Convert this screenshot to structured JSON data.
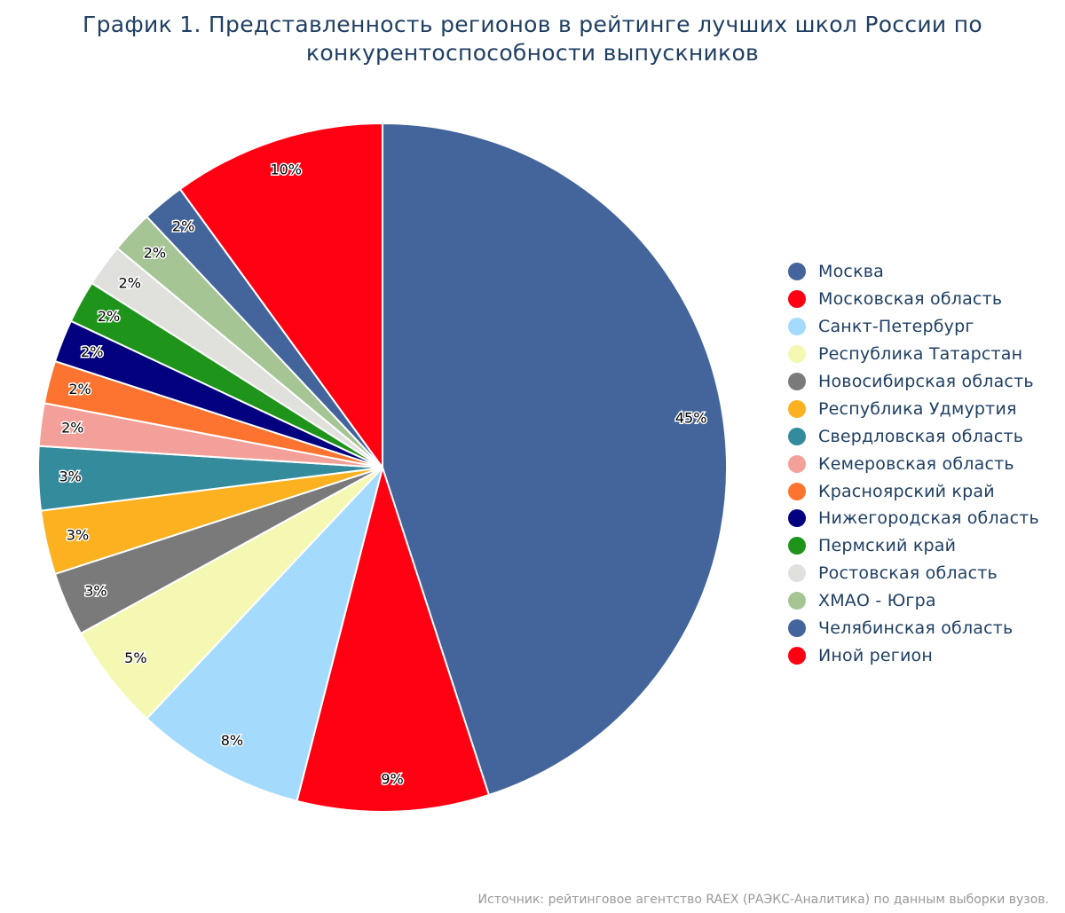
{
  "chart_data": {
    "type": "pie",
    "title": "График 1. Представленность регионов в рейтинге лучших школ России по конкурентоспособности выпускников",
    "categories": [
      "Москва",
      "Московская область",
      "Санкт-Петербург",
      "Республика Татарстан",
      "Новосибирская область",
      "Республика Удмуртия",
      "Свердловская область",
      "Кемеровская область",
      "Красноярский край",
      "Нижегородская область",
      "Пермский край",
      "Ростовская область",
      "ХМАО - Югра",
      "Челябинская область",
      "Иной регион"
    ],
    "values": [
      45,
      9,
      8,
      5,
      3,
      3,
      3,
      2,
      2,
      2,
      2,
      2,
      2,
      2,
      10
    ],
    "colors": [
      "#44659b",
      "#ff0012",
      "#a4dbfc",
      "#f5f8b2",
      "#7a7a7a",
      "#fcb120",
      "#348b9c",
      "#f4a09a",
      "#fd7430",
      "#030080",
      "#1e941a",
      "#e0e0dd",
      "#a5c595",
      "#44659b",
      "#ff0012"
    ],
    "data_label_suffix": "%",
    "legend_position": "right",
    "source": "Источник: рейтинговое агентство RAEX (РАЭКС-Аналитика) по данным выборки вузов."
  }
}
